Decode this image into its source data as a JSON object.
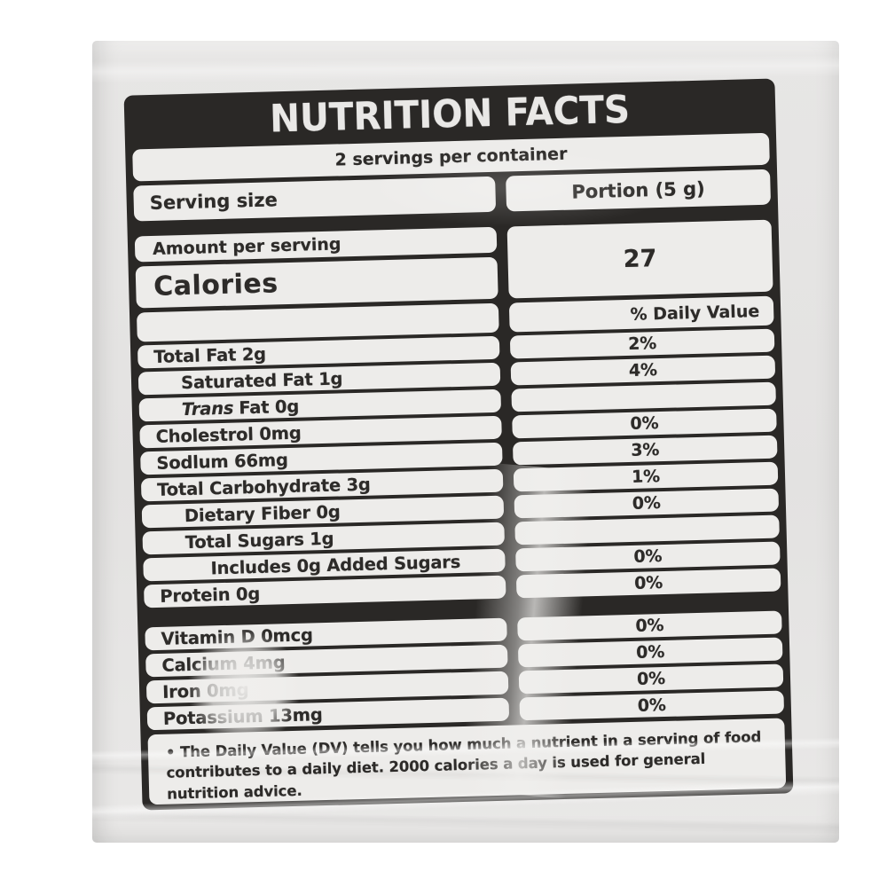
{
  "label": {
    "title": "NUTRITION FACTS",
    "servings_per_container": "2 servings per container",
    "serving_size_label": "Serving size",
    "serving_size_value": "Portion (5 g)",
    "amount_per_serving": "Amount per serving",
    "calories_label": "Calories",
    "calories_value": "27",
    "daily_value_header": "% Daily Value",
    "nutrients": [
      {
        "name": "Total Fat 2g",
        "dv": "2%"
      },
      {
        "name": "Saturated Fat 1g",
        "dv": "4%"
      },
      {
        "name_italic": "Trans",
        "name": "Fat 0g",
        "dv": ""
      },
      {
        "name": "Cholestrol 0mg",
        "dv": "0%"
      },
      {
        "name": "Sodlum 66mg",
        "dv": "3%"
      },
      {
        "name": "Total Carbohydrate 3g",
        "dv": "1%"
      },
      {
        "name": "Dietary Fiber 0g",
        "dv": "0%"
      },
      {
        "name": "Total Sugars 1g",
        "dv": ""
      },
      {
        "name": "Includes 0g Added Sugars",
        "dv": "0%"
      },
      {
        "name": "Protein 0g",
        "dv": "0%"
      }
    ],
    "vitamins": [
      {
        "name": "Vitamin D 0mcg",
        "dv": "0%"
      },
      {
        "name": "Calcium 4mg",
        "dv": "0%"
      },
      {
        "name": "Iron 0mg",
        "dv": "0%"
      },
      {
        "name": "Potassium 13mg",
        "dv": "0%"
      }
    ],
    "footnote": "• The Daily Value (DV) tells you how much a nutrient in a serving of food contributes to a daily diet. 2000 calories a day is used for general nutrition advice."
  },
  "colors": {
    "label_background": "#2a2826",
    "row_background": "#edecea",
    "bag_background": "#e4e3e2",
    "text": "#2d2b29",
    "title_text": "#e9e8e6"
  }
}
